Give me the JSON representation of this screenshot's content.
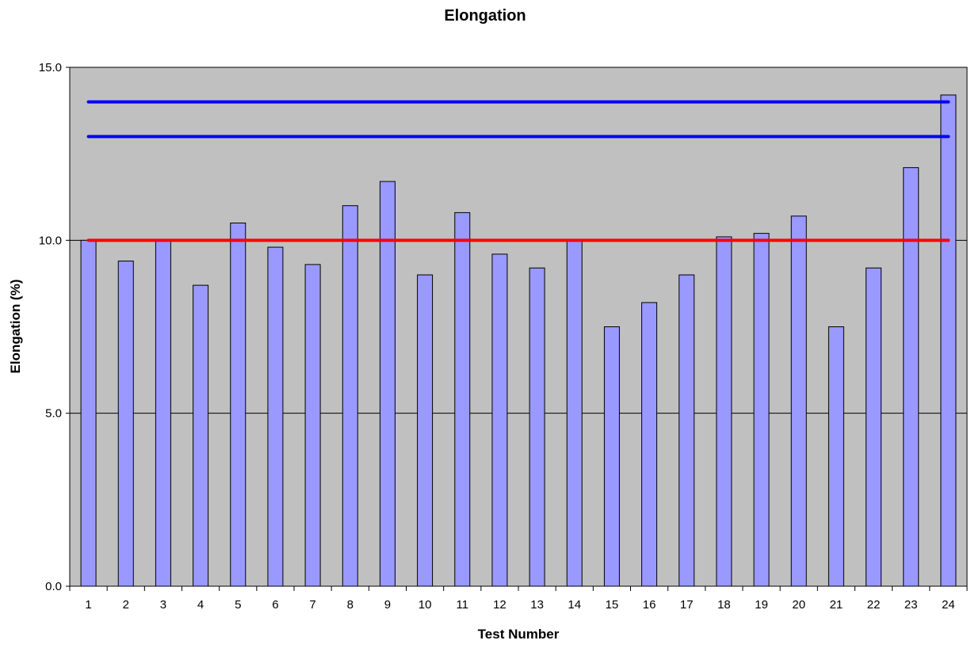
{
  "chart_data": {
    "type": "bar",
    "title": "Elongation",
    "xlabel": "Test Number",
    "ylabel": "Elongation (%)",
    "ylim": [
      0,
      15
    ],
    "y_ticks": [
      "0.0",
      "5.0",
      "10.0",
      "15.0"
    ],
    "y_tick_values": [
      0,
      5,
      10,
      15
    ],
    "categories": [
      "1",
      "2",
      "3",
      "4",
      "5",
      "6",
      "7",
      "8",
      "9",
      "10",
      "11",
      "12",
      "13",
      "14",
      "15",
      "16",
      "17",
      "18",
      "19",
      "20",
      "21",
      "22",
      "23",
      "24"
    ],
    "values": [
      10.0,
      9.4,
      10.0,
      8.7,
      10.5,
      9.8,
      9.3,
      11.0,
      11.7,
      9.0,
      10.8,
      9.6,
      9.2,
      10.0,
      7.5,
      8.2,
      9.0,
      10.1,
      10.2,
      10.7,
      7.5,
      9.2,
      12.1,
      14.2
    ],
    "grid": true,
    "reference_lines": [
      {
        "value": 14.0,
        "color": "#0000ff"
      },
      {
        "value": 13.0,
        "color": "#0000ff"
      },
      {
        "value": 10.0,
        "color": "#ff0000"
      }
    ],
    "colors": {
      "bar_fill": "#9999ff",
      "bar_stroke": "#000000",
      "plot_background": "#c0c0c0"
    }
  }
}
